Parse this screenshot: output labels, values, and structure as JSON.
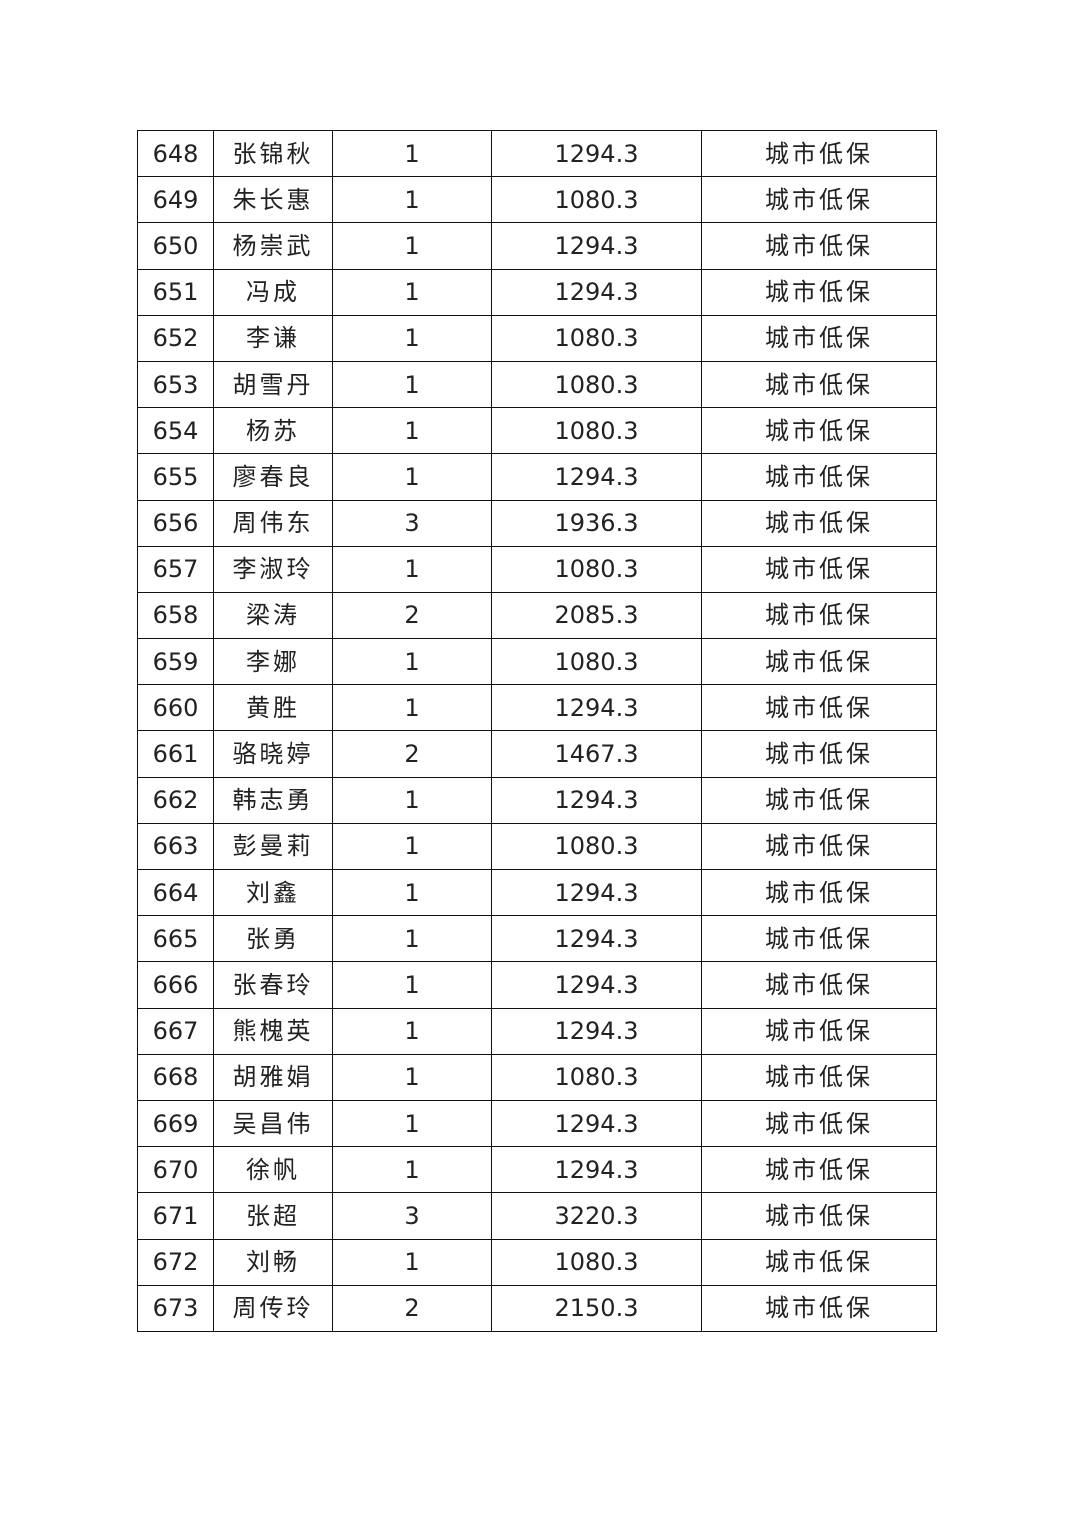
{
  "table": {
    "rows": [
      [
        "648",
        "张锦秋",
        "1",
        "1294.3",
        "城市低保"
      ],
      [
        "649",
        "朱长惠",
        "1",
        "1080.3",
        "城市低保"
      ],
      [
        "650",
        "杨崇武",
        "1",
        "1294.3",
        "城市低保"
      ],
      [
        "651",
        "冯成",
        "1",
        "1294.3",
        "城市低保"
      ],
      [
        "652",
        "李谦",
        "1",
        "1080.3",
        "城市低保"
      ],
      [
        "653",
        "胡雪丹",
        "1",
        "1080.3",
        "城市低保"
      ],
      [
        "654",
        "杨苏",
        "1",
        "1080.3",
        "城市低保"
      ],
      [
        "655",
        "廖春良",
        "1",
        "1294.3",
        "城市低保"
      ],
      [
        "656",
        "周伟东",
        "3",
        "1936.3",
        "城市低保"
      ],
      [
        "657",
        "李淑玲",
        "1",
        "1080.3",
        "城市低保"
      ],
      [
        "658",
        "梁涛",
        "2",
        "2085.3",
        "城市低保"
      ],
      [
        "659",
        "李娜",
        "1",
        "1080.3",
        "城市低保"
      ],
      [
        "660",
        "黄胜",
        "1",
        "1294.3",
        "城市低保"
      ],
      [
        "661",
        "骆晓婷",
        "2",
        "1467.3",
        "城市低保"
      ],
      [
        "662",
        "韩志勇",
        "1",
        "1294.3",
        "城市低保"
      ],
      [
        "663",
        "彭曼莉",
        "1",
        "1080.3",
        "城市低保"
      ],
      [
        "664",
        "刘鑫",
        "1",
        "1294.3",
        "城市低保"
      ],
      [
        "665",
        "张勇",
        "1",
        "1294.3",
        "城市低保"
      ],
      [
        "666",
        "张春玲",
        "1",
        "1294.3",
        "城市低保"
      ],
      [
        "667",
        "熊槐英",
        "1",
        "1294.3",
        "城市低保"
      ],
      [
        "668",
        "胡雅娟",
        "1",
        "1080.3",
        "城市低保"
      ],
      [
        "669",
        "吴昌伟",
        "1",
        "1294.3",
        "城市低保"
      ],
      [
        "670",
        "徐帆",
        "1",
        "1294.3",
        "城市低保"
      ],
      [
        "671",
        "张超",
        "3",
        "3220.3",
        "城市低保"
      ],
      [
        "672",
        "刘畅",
        "1",
        "1080.3",
        "城市低保"
      ],
      [
        "673",
        "周传玲",
        "2",
        "2150.3",
        "城市低保"
      ]
    ]
  }
}
